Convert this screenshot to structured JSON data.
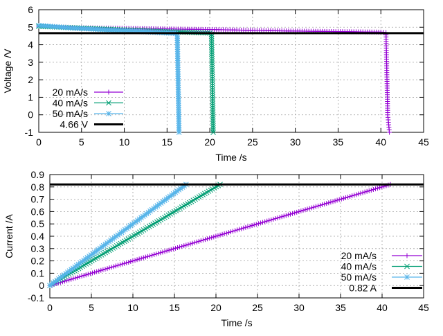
{
  "chart_data": [
    {
      "type": "line",
      "xlabel": "Time /s",
      "ylabel": "Voltage /V",
      "xlim": [
        0,
        45
      ],
      "ylim": [
        -1,
        6
      ],
      "xticks": [
        0,
        5,
        10,
        15,
        20,
        25,
        30,
        35,
        40,
        45
      ],
      "yticks": [
        -1,
        0,
        1,
        2,
        3,
        4,
        5,
        6
      ],
      "grid": true,
      "legend_position": "bottom-left",
      "series": [
        {
          "name": "20 mA/s",
          "color": "#9400d3",
          "marker": "plus",
          "x": [
            0,
            5,
            10,
            15,
            20,
            25,
            30,
            35,
            40,
            40.6,
            40.8,
            41.0
          ],
          "y": [
            5.05,
            4.97,
            4.93,
            4.9,
            4.87,
            4.82,
            4.78,
            4.75,
            4.72,
            4.7,
            0.0,
            -1.0
          ]
        },
        {
          "name": "40 mA/s",
          "color": "#009e73",
          "marker": "x",
          "x": [
            0,
            5,
            10,
            15,
            20,
            20.2,
            20.4
          ],
          "y": [
            5.05,
            4.95,
            4.85,
            4.75,
            4.67,
            4.6,
            -1.0
          ]
        },
        {
          "name": "50 mA/s",
          "color": "#56b4e9",
          "marker": "star",
          "x": [
            0,
            4,
            8,
            12,
            16,
            16.2,
            16.4
          ],
          "y": [
            5.1,
            4.95,
            4.85,
            4.75,
            4.65,
            4.5,
            -1.0
          ]
        },
        {
          "name": "4.66 V",
          "color": "#000000",
          "marker": "none",
          "x": [
            0,
            45
          ],
          "y": [
            4.66,
            4.66
          ]
        }
      ]
    },
    {
      "type": "line",
      "xlabel": "Time /s",
      "ylabel": "Current /A",
      "xlim": [
        0,
        45
      ],
      "ylim": [
        -0.1,
        0.9
      ],
      "xticks": [
        0,
        5,
        10,
        15,
        20,
        25,
        30,
        35,
        40,
        45
      ],
      "yticks": [
        -0.1,
        0,
        0.1,
        0.2,
        0.3,
        0.4,
        0.5,
        0.6,
        0.7,
        0.8,
        0.9
      ],
      "grid": true,
      "legend_position": "bottom-right",
      "series": [
        {
          "name": "20 mA/s",
          "color": "#9400d3",
          "marker": "plus",
          "x": [
            0,
            41
          ],
          "y": [
            0,
            0.82
          ]
        },
        {
          "name": "40 mA/s",
          "color": "#009e73",
          "marker": "x",
          "x": [
            0,
            20.5
          ],
          "y": [
            0,
            0.82
          ]
        },
        {
          "name": "50 mA/s",
          "color": "#56b4e9",
          "marker": "star",
          "x": [
            0,
            16.4
          ],
          "y": [
            0,
            0.82
          ]
        },
        {
          "name": "0.82 A",
          "color": "#000000",
          "marker": "none",
          "x": [
            0,
            45
          ],
          "y": [
            0.82,
            0.82
          ]
        }
      ]
    }
  ]
}
